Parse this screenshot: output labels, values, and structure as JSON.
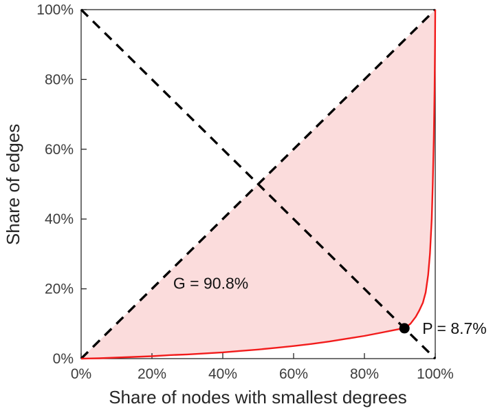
{
  "figure": {
    "background_color": "#ffffff",
    "description": "Lorenz curve of a graph degree distribution with Gini coefficient shading"
  },
  "chart_data": {
    "type": "line",
    "title": "",
    "xlabel": "Share of nodes with smallest degrees",
    "ylabel": "Share of edges",
    "xlim": [
      0,
      100
    ],
    "ylim": [
      0,
      100
    ],
    "xticks": [
      0,
      20,
      40,
      60,
      80,
      100
    ],
    "yticks": [
      0,
      20,
      40,
      60,
      80,
      100
    ],
    "tick_suffix": "%",
    "grid": false,
    "legend": "none",
    "axis_color": "#262626",
    "tick_label_color": "#3c3c3c",
    "series": [
      {
        "id": "lorenz",
        "name": "Lorenz curve (share of edges vs share of nodes)",
        "color": "#f21b1b",
        "width": 2.4,
        "dash": null,
        "points": [
          [
            0,
            0
          ],
          [
            5,
            0.1
          ],
          [
            10,
            0.3
          ],
          [
            15,
            0.5
          ],
          [
            20,
            0.7
          ],
          [
            25,
            1.0
          ],
          [
            30,
            1.2
          ],
          [
            35,
            1.5
          ],
          [
            40,
            1.8
          ],
          [
            45,
            2.2
          ],
          [
            50,
            2.6
          ],
          [
            55,
            3.1
          ],
          [
            60,
            3.6
          ],
          [
            65,
            4.2
          ],
          [
            70,
            4.9
          ],
          [
            75,
            5.7
          ],
          [
            80,
            6.5
          ],
          [
            85,
            7.5
          ],
          [
            88,
            8.1
          ],
          [
            90,
            8.5
          ],
          [
            91.3,
            8.7
          ],
          [
            93,
            10
          ],
          [
            94.5,
            12
          ],
          [
            95.5,
            13.8
          ],
          [
            96.5,
            16
          ],
          [
            97.3,
            19
          ],
          [
            98,
            24
          ],
          [
            98.5,
            30
          ],
          [
            99,
            40
          ],
          [
            99.3,
            50
          ],
          [
            99.6,
            63
          ],
          [
            99.8,
            77
          ],
          [
            99.95,
            90
          ],
          [
            100,
            100
          ]
        ]
      },
      {
        "id": "equality",
        "name": "Line of equality (diagonal)",
        "color": "#000000",
        "width": 3.4,
        "dash": "14 10",
        "points": [
          [
            0,
            0
          ],
          [
            100,
            100
          ]
        ]
      },
      {
        "id": "antidiagonal",
        "name": "Anti-diagonal reference line",
        "color": "#000000",
        "width": 3.4,
        "dash": "14 10",
        "points": [
          [
            0,
            100
          ],
          [
            100,
            0
          ]
        ]
      }
    ],
    "gini_area": {
      "between": [
        "equality",
        "lorenz"
      ],
      "fill_color": "#fbdcdc"
    },
    "marker": {
      "id": "P",
      "x": 91.3,
      "y": 8.7,
      "radius": 7.5,
      "color": "#000000"
    },
    "annotations": [
      {
        "id": "gini-label",
        "text": "G = 90.8%",
        "x": 26,
        "y": 20,
        "anchor": "start",
        "dx": 0,
        "dy": 0
      },
      {
        "id": "p-label",
        "text": "P = 8.7%",
        "x": 91.3,
        "y": 8.7,
        "anchor": "start",
        "dx": 26,
        "dy": 8
      }
    ]
  }
}
